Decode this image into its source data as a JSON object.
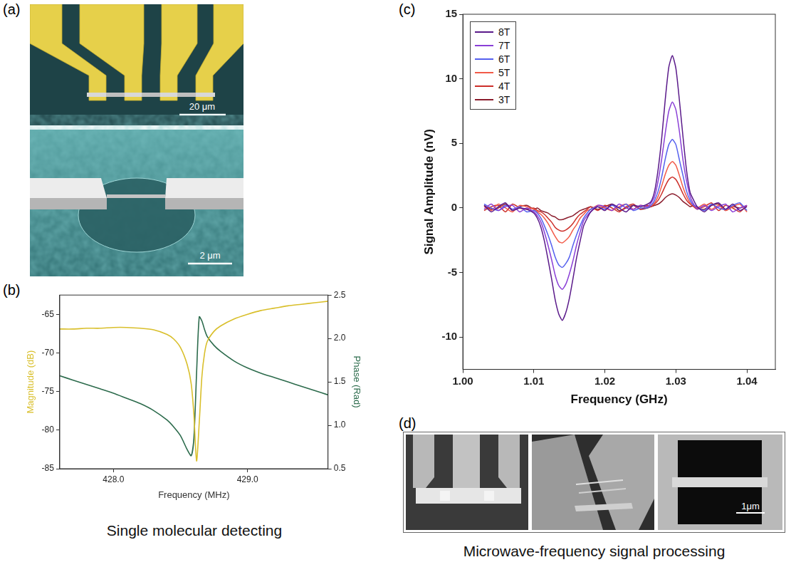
{
  "chart_data": [
    {
      "type": "line",
      "x_label": "Frequency (MHz)",
      "y_label": "Magnitude (dB)",
      "y2_label": "Phase (Rad)",
      "x": [
        427.6,
        427.7,
        427.8,
        427.9,
        428.0,
        428.1,
        428.2,
        428.3,
        428.4,
        428.45,
        428.5,
        428.55,
        428.58,
        428.6,
        428.62,
        428.64,
        428.66,
        428.68,
        428.7,
        428.75,
        428.8,
        428.9,
        429.0,
        429.1,
        429.2,
        429.3,
        429.4,
        429.5,
        429.6
      ],
      "series": [
        {
          "color": "#d9bf2b",
          "axis": "y",
          "values": [
            -66.9,
            -66.9,
            -66.8,
            -66.8,
            -66.7,
            -66.7,
            -66.8,
            -67.0,
            -67.6,
            -68.2,
            -69.3,
            -71.5,
            -74.0,
            -78.0,
            -84.0,
            -79.0,
            -73.0,
            -70.0,
            -68.5,
            -67.2,
            -66.5,
            -65.6,
            -65.0,
            -64.5,
            -64.2,
            -63.9,
            -63.7,
            -63.5,
            -63.3
          ]
        },
        {
          "color": "#2c6b4c",
          "axis": "y2",
          "values": [
            1.57,
            1.52,
            1.47,
            1.42,
            1.37,
            1.31,
            1.25,
            1.17,
            1.06,
            0.98,
            0.88,
            0.72,
            0.65,
            0.85,
            1.6,
            2.25,
            2.2,
            2.1,
            2.02,
            1.92,
            1.85,
            1.74,
            1.66,
            1.6,
            1.55,
            1.5,
            1.45,
            1.4,
            1.35
          ]
        }
      ],
      "xlim": [
        427.6,
        429.6
      ],
      "xticks": [
        {
          "value": 428,
          "label": "428.0"
        },
        {
          "value": 429,
          "label": "429.0"
        }
      ],
      "ylim": [
        -85,
        -62.5
      ],
      "yticks": [
        -85,
        -80,
        -75,
        -70,
        -65
      ],
      "y2lim": [
        0.5,
        2.5
      ],
      "y2ticks": [
        0.5,
        {
          "value": 1,
          "label": "1.0"
        },
        1.5,
        {
          "value": 2,
          "label": "2.0"
        },
        2.5
      ],
      "grid": false
    },
    {
      "type": "line",
      "x_label": "Frequency (GHz)",
      "y_label": "Signal Amplitude (nV)",
      "legend": "upper left",
      "x": [
        1.003,
        1.004,
        1.005,
        1.006,
        1.007,
        1.008,
        1.009,
        1.01,
        1.0105,
        1.011,
        1.0115,
        1.012,
        1.0125,
        1.013,
        1.0135,
        1.014,
        1.0145,
        1.015,
        1.0155,
        1.016,
        1.0165,
        1.017,
        1.0175,
        1.018,
        1.019,
        1.02,
        1.021,
        1.022,
        1.023,
        1.024,
        1.025,
        1.026,
        1.0265,
        1.027,
        1.0275,
        1.028,
        1.0285,
        1.029,
        1.0295,
        1.03,
        1.0305,
        1.031,
        1.0315,
        1.032,
        1.0325,
        1.033,
        1.034,
        1.035,
        1.036,
        1.037,
        1.038,
        1.039,
        1.04
      ],
      "series": [
        {
          "name": "8T",
          "color": "#5a1a8a",
          "values": [
            0.2,
            -0.3,
            0.1,
            0.4,
            -0.2,
            0.0,
            -0.1,
            -0.4,
            -0.8,
            -1.5,
            -2.6,
            -4.0,
            -5.5,
            -7.1,
            -8.2,
            -8.7,
            -8.1,
            -7.0,
            -5.5,
            -3.9,
            -2.6,
            -1.4,
            -0.8,
            -0.3,
            0.1,
            -0.2,
            0.3,
            0.0,
            -0.3,
            0.2,
            0.1,
            0.3,
            0.5,
            1.3,
            3.0,
            5.4,
            8.4,
            10.9,
            11.8,
            10.8,
            8.3,
            5.5,
            2.9,
            1.2,
            0.6,
            0.1,
            -0.3,
            0.2,
            0.4,
            -0.1,
            0.3,
            -0.2,
            0.1
          ]
        },
        {
          "name": "7T",
          "color": "#8a3fd6",
          "values": [
            -0.1,
            0.3,
            -0.2,
            0.1,
            0.2,
            -0.3,
            0.0,
            -0.3,
            -0.6,
            -1.1,
            -1.9,
            -2.9,
            -4.0,
            -5.2,
            -6.0,
            -6.3,
            -5.9,
            -5.1,
            -4.1,
            -2.9,
            -1.9,
            -1.0,
            -0.6,
            -0.3,
            0.2,
            0.1,
            -0.2,
            0.3,
            0.0,
            -0.1,
            0.2,
            0.1,
            0.4,
            0.9,
            2.1,
            3.8,
            5.8,
            7.5,
            8.2,
            7.6,
            5.9,
            3.7,
            2.1,
            0.9,
            0.3,
            -0.1,
            0.2,
            -0.2,
            0.1,
            0.3,
            -0.3,
            0.0,
            0.2
          ]
        },
        {
          "name": "6T",
          "color": "#5560ee",
          "values": [
            0.3,
            0.0,
            -0.2,
            0.2,
            -0.1,
            0.1,
            -0.3,
            -0.2,
            -0.4,
            -0.8,
            -1.4,
            -2.1,
            -2.9,
            -3.8,
            -4.4,
            -4.6,
            -4.3,
            -3.8,
            -2.9,
            -2.1,
            -1.4,
            -0.8,
            -0.4,
            -0.1,
            0.1,
            -0.1,
            0.2,
            0.0,
            0.3,
            -0.2,
            0.0,
            0.0,
            0.2,
            0.6,
            1.3,
            2.4,
            3.8,
            4.9,
            5.3,
            4.9,
            3.7,
            2.5,
            1.3,
            0.6,
            0.2,
            0.1,
            -0.2,
            0.3,
            0.0,
            -0.1,
            0.2,
            0.4,
            -0.2
          ]
        },
        {
          "name": "5T",
          "color": "#f25a48",
          "values": [
            0.1,
            -0.2,
            0.3,
            0.0,
            -0.3,
            0.2,
            0.1,
            -0.1,
            -0.3,
            -0.5,
            -0.8,
            -1.2,
            -1.7,
            -2.2,
            -2.6,
            -2.7,
            -2.5,
            -2.2,
            -1.7,
            -1.3,
            -0.8,
            -0.5,
            -0.2,
            -0.1,
            0.2,
            0.0,
            -0.2,
            0.1,
            0.3,
            -0.1,
            0.2,
            0.1,
            0.2,
            0.4,
            0.9,
            1.7,
            2.6,
            3.3,
            3.6,
            3.3,
            2.5,
            1.6,
            0.9,
            0.4,
            0.2,
            0.0,
            0.3,
            -0.1,
            0.2,
            -0.2,
            0.1,
            0.3,
            -0.3
          ]
        },
        {
          "name": "4T",
          "color": "#cc2f2a",
          "values": [
            -0.2,
            0.1,
            0.2,
            -0.3,
            0.3,
            0.0,
            -0.1,
            0.0,
            -0.2,
            -0.3,
            -0.5,
            -0.8,
            -1.1,
            -1.5,
            -1.7,
            -1.8,
            -1.7,
            -1.5,
            -1.2,
            -0.8,
            -0.5,
            -0.3,
            -0.1,
            0.1,
            -0.2,
            0.2,
            0.0,
            -0.3,
            0.1,
            0.3,
            -0.1,
            0.2,
            0.1,
            0.3,
            0.6,
            1.1,
            1.7,
            2.2,
            2.4,
            2.2,
            1.7,
            1.1,
            0.6,
            0.3,
            0.1,
            -0.1,
            0.1,
            0.4,
            -0.2,
            0.2,
            0.0,
            -0.3,
            0.2
          ]
        },
        {
          "name": "3T",
          "color": "#8a1c2c",
          "values": [
            0.2,
            -0.1,
            0.0,
            0.3,
            -0.2,
            0.1,
            0.2,
            -0.1,
            0.0,
            -0.2,
            -0.3,
            -0.4,
            -0.6,
            -0.7,
            -0.9,
            -0.9,
            -0.8,
            -0.7,
            -0.6,
            -0.4,
            -0.2,
            -0.1,
            0.0,
            0.1,
            -0.1,
            0.1,
            0.3,
            -0.2,
            0.0,
            0.2,
            -0.1,
            0.0,
            0.1,
            0.2,
            0.3,
            0.5,
            0.8,
            1.0,
            1.1,
            1.0,
            0.8,
            0.5,
            0.3,
            0.1,
            0.2,
            0.0,
            -0.1,
            0.2,
            0.3,
            -0.2,
            0.1,
            0.0,
            0.2
          ]
        }
      ],
      "xlim": [
        1.0,
        1.044
      ],
      "xticks": [
        {
          "value": 1,
          "label": "1.00"
        },
        1.01,
        1.02,
        1.03,
        1.04
      ],
      "ylim": [
        -12.5,
        15
      ],
      "yticks": [
        -10,
        -5,
        0,
        5,
        10,
        15
      ],
      "grid": false
    }
  ],
  "panels": [
    {
      "letter": "(a)",
      "scale_bars": [
        "20 μm",
        "2 μm"
      ]
    },
    {
      "letter": "(b)",
      "caption": "Single molecular detecting"
    },
    {
      "letter": "(c)"
    },
    {
      "letter": "(d)",
      "scale_bars": [
        "1μm"
      ],
      "caption": "Microwave-frequency signal processing"
    }
  ]
}
